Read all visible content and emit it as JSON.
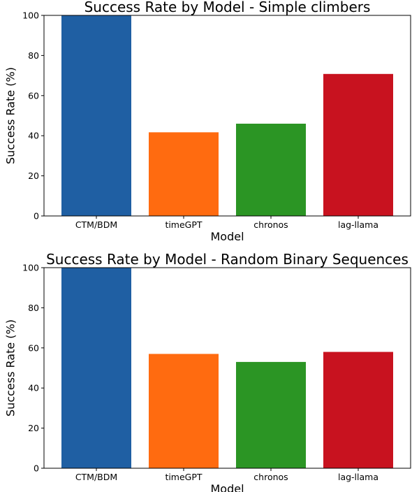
{
  "chart_data": [
    {
      "type": "bar",
      "title": "Success Rate by Model - Simple climbers",
      "xlabel": "Model",
      "ylabel": "Success Rate (%)",
      "categories": [
        "CTM/BDM",
        "timeGPT",
        "chronos",
        "lag-llama"
      ],
      "values": [
        100,
        41.7,
        46,
        70.8
      ],
      "colors": [
        "#1f5fa3",
        "#ff6b10",
        "#2b9524",
        "#c8121f"
      ],
      "ylim": [
        0,
        100
      ],
      "yticks": [
        0,
        20,
        40,
        60,
        80,
        100
      ],
      "grid": false
    },
    {
      "type": "bar",
      "title": "Success Rate by Model - Random Binary Sequences",
      "xlabel": "Model",
      "ylabel": "Success Rate (%)",
      "categories": [
        "CTM/BDM",
        "timeGPT",
        "chronos",
        "lag-llama"
      ],
      "values": [
        100,
        57,
        53,
        58
      ],
      "colors": [
        "#1f5fa3",
        "#ff6b10",
        "#2b9524",
        "#c8121f"
      ],
      "ylim": [
        0,
        100
      ],
      "yticks": [
        0,
        20,
        40,
        60,
        80,
        100
      ],
      "grid": false
    }
  ]
}
